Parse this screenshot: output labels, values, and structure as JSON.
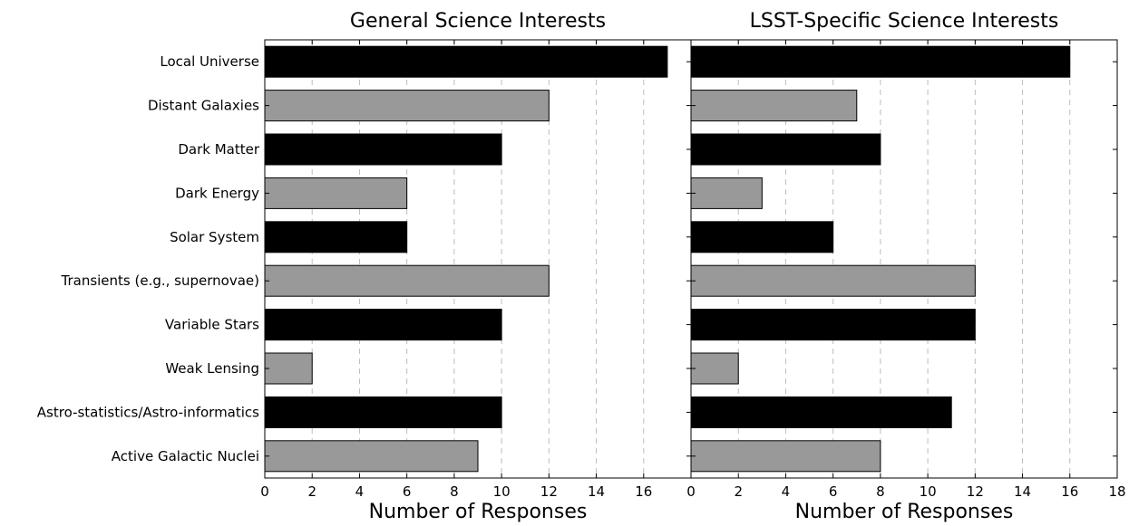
{
  "chart_data": [
    {
      "type": "bar",
      "orientation": "horizontal",
      "title": "General Science Interests",
      "xlabel": "Number of Responses",
      "ylabel": "",
      "categories": [
        "Local Universe",
        "Distant Galaxies",
        "Dark Matter",
        "Dark Energy",
        "Solar System",
        "Transients (e.g., supernovae)",
        "Variable Stars",
        "Weak Lensing",
        "Astro-statistics/Astro-informatics",
        "Active Galactic Nuclei"
      ],
      "values": [
        17,
        12,
        10,
        6,
        6,
        12,
        10,
        2,
        10,
        9
      ],
      "bar_colors": [
        "#000000",
        "#999999",
        "#000000",
        "#999999",
        "#000000",
        "#999999",
        "#000000",
        "#999999",
        "#000000",
        "#999999"
      ],
      "xlim": [
        0,
        18
      ],
      "xticks": [
        "0",
        "2",
        "4",
        "6",
        "8",
        "10",
        "12",
        "14",
        "16"
      ],
      "grid": "vertical dashed"
    },
    {
      "type": "bar",
      "orientation": "horizontal",
      "title": "LSST-Specific Science Interests",
      "xlabel": "Number of Responses",
      "ylabel": "",
      "categories": [
        "Local Universe",
        "Distant Galaxies",
        "Dark Matter",
        "Dark Energy",
        "Solar System",
        "Transients (e.g., supernovae)",
        "Variable Stars",
        "Weak Lensing",
        "Astro-statistics/Astro-informatics",
        "Active Galactic Nuclei"
      ],
      "values": [
        16,
        7,
        8,
        3,
        6,
        12,
        12,
        2,
        11,
        8
      ],
      "bar_colors": [
        "#000000",
        "#999999",
        "#000000",
        "#999999",
        "#000000",
        "#999999",
        "#000000",
        "#999999",
        "#000000",
        "#999999"
      ],
      "xlim": [
        0,
        18
      ],
      "xticks": [
        "0",
        "2",
        "4",
        "6",
        "8",
        "10",
        "12",
        "14",
        "16",
        "18"
      ],
      "grid": "vertical dashed"
    }
  ]
}
